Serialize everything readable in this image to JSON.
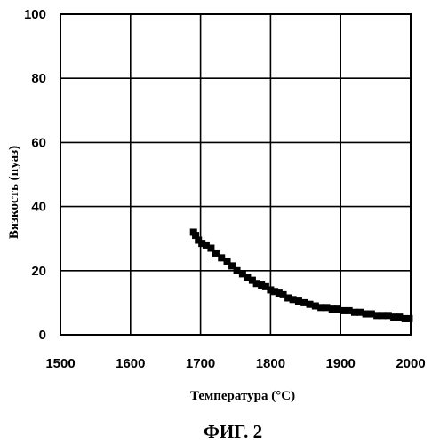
{
  "figure": {
    "caption": "ФИГ. 2"
  },
  "chart_data": {
    "type": "scatter",
    "xlabel": "Температура (°C)",
    "ylabel": "Вязкость (пуаз)",
    "xlim": [
      1500,
      2000
    ],
    "ylim": [
      0,
      100
    ],
    "x_ticks": [
      "1500",
      "1600",
      "1700",
      "1800",
      "1900",
      "2000"
    ],
    "y_ticks": [
      "0",
      "20",
      "40",
      "60",
      "80",
      "100"
    ],
    "grid": true,
    "marker": "square",
    "color": "#000000",
    "series": [
      {
        "x": [
          1690,
          1693,
          1697,
          1702,
          1708,
          1715,
          1722,
          1730,
          1738,
          1745,
          1752,
          1760,
          1767,
          1774,
          1780,
          1787,
          1793,
          1800,
          1806,
          1812,
          1818,
          1825,
          1832,
          1840,
          1848,
          1856,
          1864,
          1872,
          1880,
          1888,
          1896,
          1904,
          1912,
          1920,
          1928,
          1936,
          1944,
          1952,
          1960,
          1968,
          1976,
          1984,
          1992,
          1998
        ],
        "y": [
          32,
          31,
          29.5,
          28.5,
          28,
          27,
          25.5,
          24,
          23,
          21.5,
          20,
          19,
          18,
          17,
          16,
          15.5,
          15,
          14,
          13.5,
          13,
          12.5,
          11.5,
          11,
          10.5,
          10,
          9.5,
          9,
          8.5,
          8.5,
          8,
          8,
          7.5,
          7.5,
          7,
          7,
          6.5,
          6.5,
          6,
          6,
          6,
          5.5,
          5.5,
          5,
          5
        ]
      }
    ]
  }
}
